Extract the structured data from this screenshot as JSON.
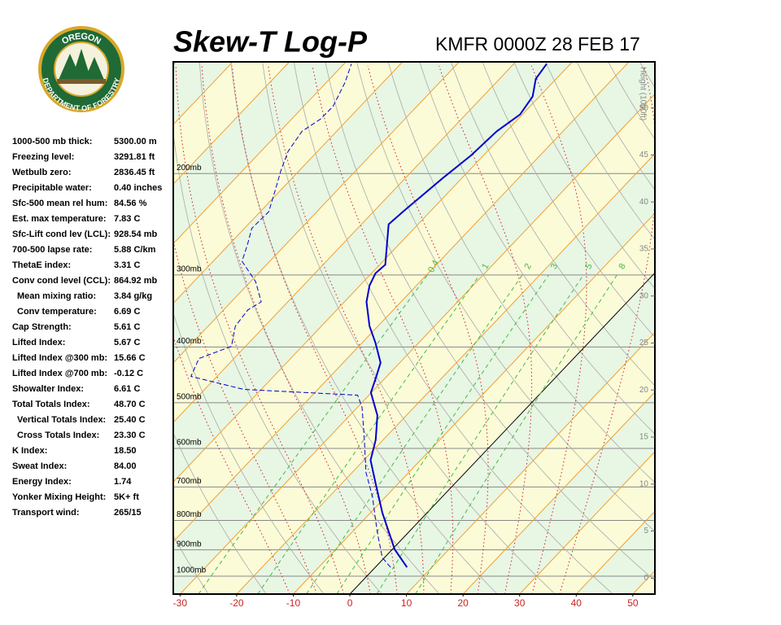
{
  "header": {
    "logo_top": "OREGON",
    "logo_bottom": "DEPARTMENT OF FORESTRY"
  },
  "stats": [
    {
      "label": "1000-500 mb thick:",
      "value": "5300.00 m"
    },
    {
      "label": "Freezing level:",
      "value": "3291.81 ft"
    },
    {
      "label": "Wetbulb zero:",
      "value": "2836.45 ft"
    },
    {
      "label": "Precipitable water:",
      "value": "0.40 inches"
    },
    {
      "label": "Sfc-500 mean rel hum:",
      "value": "84.56 %"
    },
    {
      "label": "Est. max temperature:",
      "value": "7.83 C"
    },
    {
      "label": "Sfc-Lift cond lev (LCL):",
      "value": "928.54 mb"
    },
    {
      "label": "700-500 lapse rate:",
      "value": "5.88 C/km"
    },
    {
      "label": "ThetaE index:",
      "value": "3.31 C"
    },
    {
      "label": "Conv cond level (CCL):",
      "value": "864.92 mb"
    },
    {
      "label": "Mean mixing ratio:",
      "value": "3.84 g/kg",
      "indent": true
    },
    {
      "label": "Conv temperature:",
      "value": "6.69 C",
      "indent": true
    },
    {
      "label": "Cap Strength:",
      "value": "5.61 C"
    },
    {
      "label": "Lifted Index:",
      "value": "5.67 C"
    },
    {
      "label": "Lifted Index @300 mb:",
      "value": "15.66 C"
    },
    {
      "label": "Lifted Index @700 mb:",
      "value": "-0.12 C"
    },
    {
      "label": "Showalter Index:",
      "value": "6.61 C"
    },
    {
      "label": "Total Totals Index:",
      "value": "48.70 C"
    },
    {
      "label": "Vertical Totals Index:",
      "value": "25.40 C",
      "indent": true
    },
    {
      "label": "Cross Totals Index:",
      "value": "23.30 C",
      "indent": true
    },
    {
      "label": "K Index:",
      "value": "18.50"
    },
    {
      "label": "Sweat Index:",
      "value": "84.00"
    },
    {
      "label": "Energy Index:",
      "value": "1.74"
    },
    {
      "label": "Yonker Mixing Height:",
      "value": "5K+ ft"
    },
    {
      "label": "Transport wind:",
      "value": "265/15"
    }
  ],
  "chart_data": {
    "type": "skewt",
    "title": "Skew-T Log-P",
    "subtitle": "KMFR 0000Z 28 FEB 17",
    "xlim": [
      -31.2,
      53.9
    ],
    "xticks": [
      -30,
      -20,
      -10,
      0,
      10,
      20,
      30,
      40,
      50
    ],
    "ylim": [
      1074,
      128
    ],
    "log_y": true,
    "yticks": [
      {
        "value": 200,
        "label": "200mb"
      },
      {
        "value": 300,
        "label": "300mb"
      },
      {
        "value": 400,
        "label": "400mb"
      },
      {
        "value": 500,
        "label": "500mb"
      },
      {
        "value": 600,
        "label": "600mb"
      },
      {
        "value": 700,
        "label": "700mb"
      },
      {
        "value": 800,
        "label": "800mb"
      },
      {
        "value": 900,
        "label": "900mb"
      },
      {
        "value": 1000,
        "label": "1000mb"
      }
    ],
    "y2label": "Height (1000ft)",
    "y2lim": [
      -1.7,
      54.9
    ],
    "y2ticks": [
      0,
      5,
      10,
      15,
      20,
      25,
      30,
      35,
      40,
      45,
      50
    ],
    "mixing_ratios": [
      0.4,
      1,
      2,
      3,
      5,
      8
    ],
    "series": [
      {
        "color": "#0000cc",
        "linestyle": "solid",
        "pressure": [
          965,
          898,
          776,
          693,
          629,
          580,
          526,
          480,
          454,
          426,
          393,
          368,
          334,
          313,
          298,
          288,
          245,
          233,
          204,
          186,
          169,
          158,
          147,
          137,
          129
        ],
        "values": [
          5.6,
          0.4,
          -7.9,
          -13.8,
          -18.8,
          -21.3,
          -25.1,
          -30.1,
          -31.6,
          -33.4,
          -37.7,
          -41.5,
          -46.1,
          -48.3,
          -49.3,
          -49.0,
          -55.2,
          -54.8,
          -53.4,
          -52.2,
          -51.7,
          -50.4,
          -51.2,
          -53.6,
          -54.2
        ]
      },
      {
        "color": "#0000cc",
        "linestyle": "dashed",
        "pressure": [
          965,
          928,
          856,
          802,
          727,
          660,
          580,
          509,
          485,
          474,
          450,
          419,
          399,
          368,
          345,
          334,
          308,
          284,
          266,
          249,
          233,
          212,
          198,
          183,
          169,
          161,
          153,
          139,
          129
        ],
        "values": [
          2.7,
          -0.4,
          -4.5,
          -7.7,
          -12.4,
          -17.6,
          -23.3,
          -29.2,
          -32.0,
          -53.1,
          -64.6,
          -66.2,
          -62.5,
          -65.2,
          -65.7,
          -64.7,
          -69.1,
          -74.9,
          -76.7,
          -78.7,
          -78.5,
          -81.2,
          -83.2,
          -85.2,
          -86.1,
          -84.9,
          -84.8,
          -86.7,
          -88.7
        ]
      }
    ]
  }
}
